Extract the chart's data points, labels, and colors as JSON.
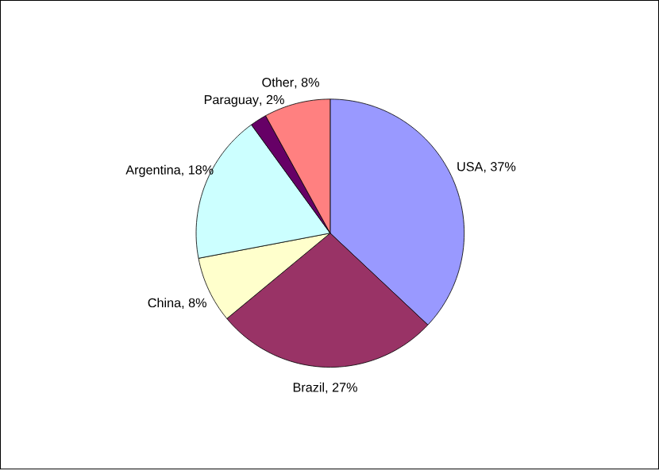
{
  "chart_data": {
    "type": "pie",
    "categories": [
      "USA",
      "Brazil",
      "China",
      "Argentina",
      "Paraguay",
      "Other"
    ],
    "values": [
      37,
      27,
      8,
      18,
      2,
      8
    ],
    "value_labels": [
      ", 37%",
      ", 27%",
      ", 8%",
      ", 18%",
      ", 2%",
      ", 8%"
    ],
    "colors": [
      "#9999ff",
      "#993366",
      "#ffffcc",
      "#ccffff",
      "#660066",
      "#ff8080"
    ]
  }
}
